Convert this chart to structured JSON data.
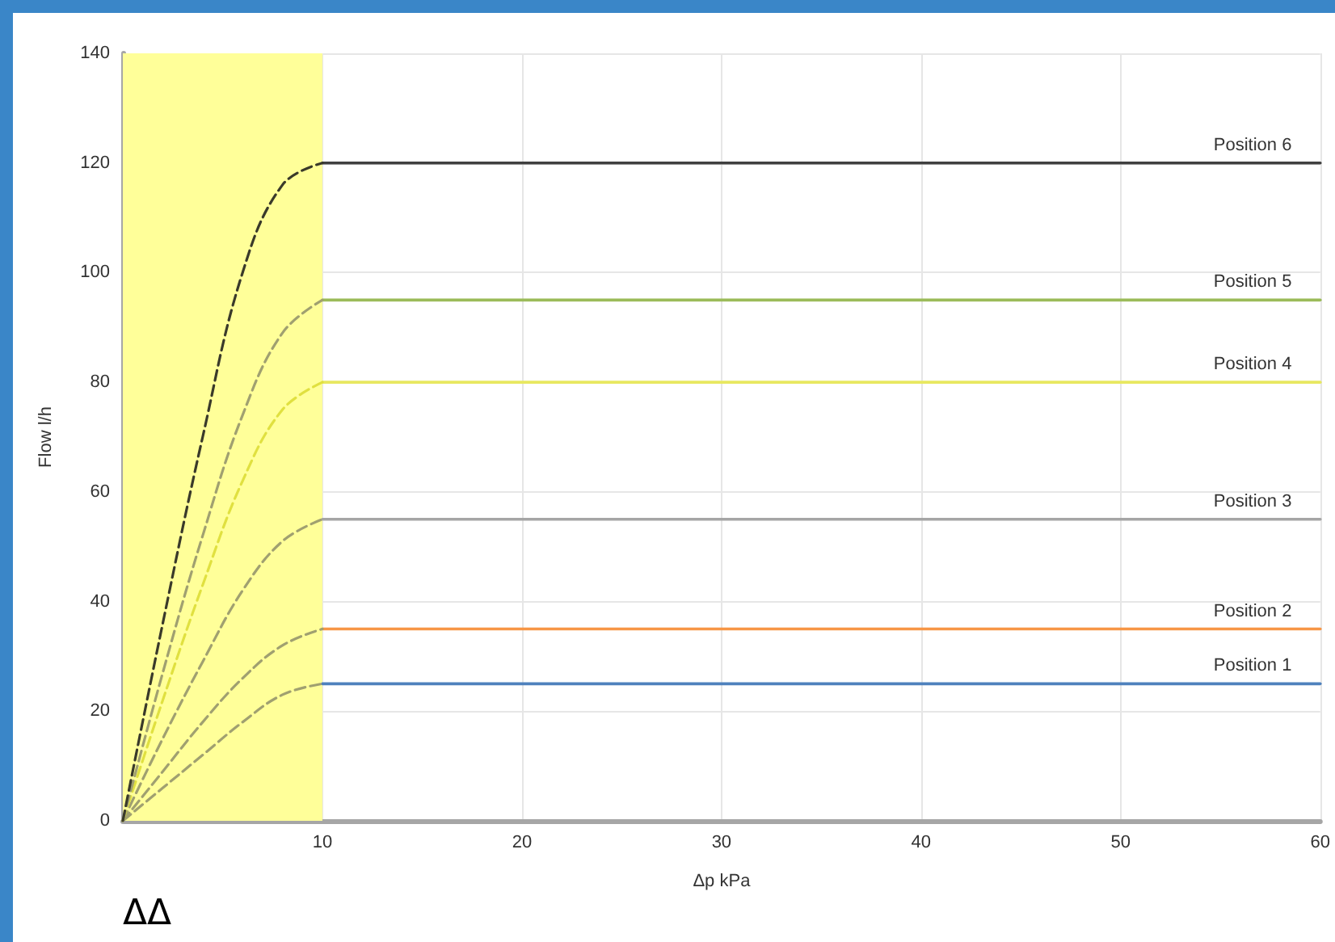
{
  "chart_data": {
    "type": "line",
    "xlabel": "Δp kPa",
    "ylabel": "Flow l/h",
    "annotations": [
      "ΔΔ"
    ],
    "xlim": [
      0,
      60
    ],
    "xticks": [
      {
        "value": 0,
        "label": null
      },
      10,
      20,
      30,
      40,
      50,
      60
    ],
    "ylim": [
      0,
      140
    ],
    "yticks": [
      0,
      20,
      40,
      60,
      80,
      100,
      120,
      140
    ],
    "grid": true,
    "legend": false,
    "marker": "none",
    "bands": [
      {
        "axis": "x",
        "from": 0,
        "to": 10,
        "color": "#ffff99"
      }
    ],
    "series": [
      {
        "x": [
          0,
          2,
          4,
          6,
          8,
          10
        ],
        "values": [
          0,
          6,
          12,
          18,
          23,
          25
        ],
        "color": "#a0a070",
        "line_style": "dashed"
      },
      {
        "x": [
          0,
          2,
          4,
          6,
          8,
          10
        ],
        "values": [
          0,
          9,
          18,
          26,
          32,
          35
        ],
        "color": "#a0a070",
        "line_style": "dashed"
      },
      {
        "x": [
          0,
          2,
          4,
          6,
          8,
          10
        ],
        "values": [
          0,
          15,
          29,
          42,
          51,
          55
        ],
        "color": "#a0a070",
        "line_style": "dashed"
      },
      {
        "x": [
          0,
          2,
          4,
          6,
          8,
          10
        ],
        "values": [
          0,
          22,
          43,
          62,
          75,
          80
        ],
        "color": "#e0e040",
        "line_style": "dashed"
      },
      {
        "x": [
          0,
          2,
          4,
          6,
          8,
          10
        ],
        "values": [
          0,
          27,
          52,
          74,
          89,
          95
        ],
        "color": "#a0a070",
        "line_style": "dashed"
      },
      {
        "x": [
          0,
          2,
          4,
          6,
          8,
          10
        ],
        "values": [
          0,
          36,
          70,
          100,
          116,
          120
        ],
        "color": "#3a3a2a",
        "line_style": "dashed"
      },
      {
        "name": "Position 1",
        "x": [
          10,
          60
        ],
        "values": [
          25,
          25
        ],
        "color": "#4f81bd",
        "line_style": "solid"
      },
      {
        "name": "Position 2",
        "x": [
          10,
          60
        ],
        "values": [
          35,
          35
        ],
        "color": "#f79646",
        "line_style": "solid"
      },
      {
        "name": "Position 3",
        "x": [
          10,
          60
        ],
        "values": [
          55,
          55
        ],
        "color": "#a5a5a5",
        "line_style": "solid"
      },
      {
        "name": "Position 4",
        "x": [
          10,
          60
        ],
        "values": [
          80,
          80
        ],
        "color": "#e8e860",
        "line_style": "solid"
      },
      {
        "name": "Position 5",
        "x": [
          10,
          60
        ],
        "values": [
          95,
          95
        ],
        "color": "#9bbb59",
        "line_style": "solid"
      },
      {
        "name": "Position 6",
        "x": [
          10,
          60
        ],
        "values": [
          120,
          120
        ],
        "color": "#404040",
        "line_style": "solid"
      }
    ]
  }
}
